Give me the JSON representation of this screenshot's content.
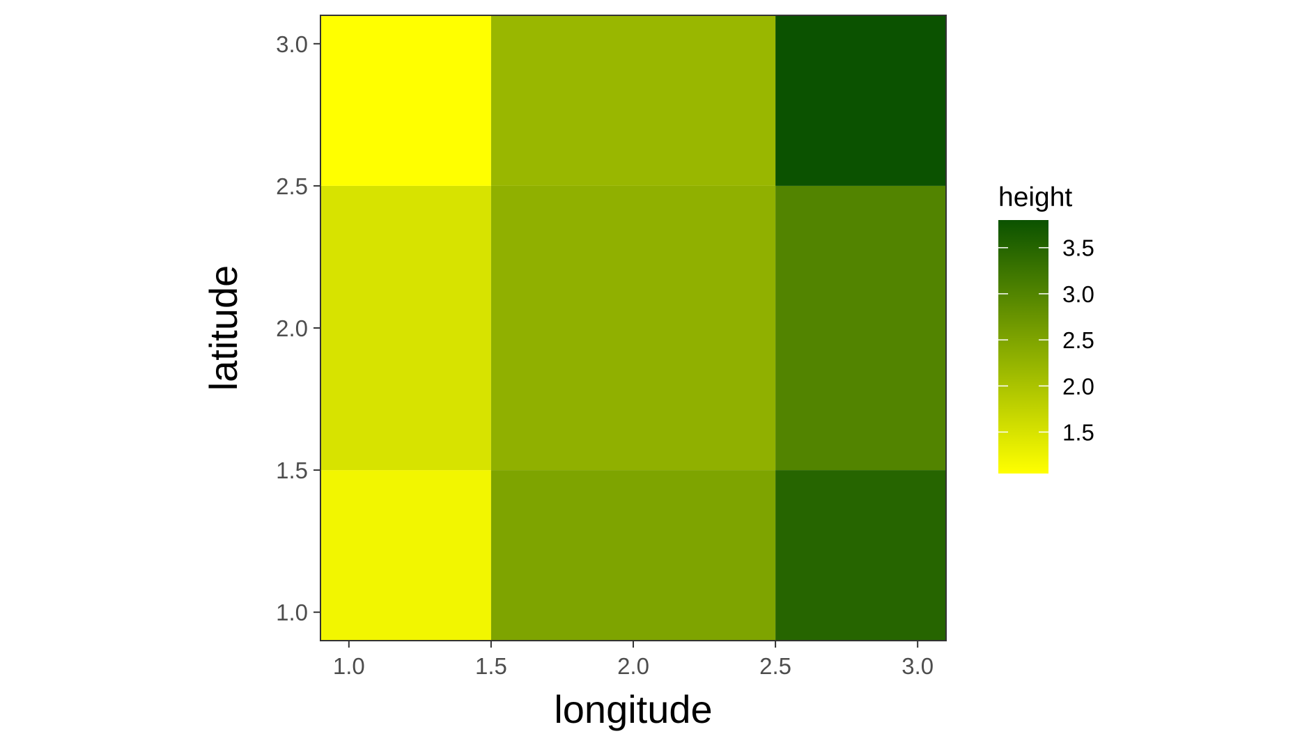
{
  "chart_data": {
    "type": "heatmap",
    "title": "",
    "xlabel": "longitude",
    "ylabel": "latitude",
    "xlim": [
      0.9,
      3.1
    ],
    "ylim": [
      0.9,
      3.1
    ],
    "x_ticks": [
      "1.0",
      "1.5",
      "2.0",
      "2.5",
      "3.0"
    ],
    "y_ticks": [
      "1.0",
      "1.5",
      "2.0",
      "2.5",
      "3.0"
    ],
    "grid": false,
    "legend": {
      "title": "height",
      "placement": "right",
      "range": [
        1.05,
        3.8
      ],
      "ticks": [
        "1.5",
        "2.0",
        "2.5",
        "3.0",
        "3.5"
      ],
      "low_color": "#FFFF00",
      "high_color": "#0B5200"
    },
    "x_bins": [
      [
        0.9,
        1.5
      ],
      [
        1.5,
        2.5
      ],
      [
        2.5,
        3.1
      ]
    ],
    "y_bins": [
      [
        0.9,
        1.5
      ],
      [
        1.5,
        2.5
      ],
      [
        2.5,
        3.1
      ]
    ],
    "cells": [
      {
        "x": 1,
        "y": 1,
        "value": 1.2
      },
      {
        "x": 2,
        "y": 1,
        "value": 2.5
      },
      {
        "x": 3,
        "y": 1,
        "value": 3.5
      },
      {
        "x": 1,
        "y": 2,
        "value": 1.5
      },
      {
        "x": 2,
        "y": 2,
        "value": 2.3
      },
      {
        "x": 3,
        "y": 2,
        "value": 3.0
      },
      {
        "x": 1,
        "y": 3,
        "value": 1.05
      },
      {
        "x": 2,
        "y": 3,
        "value": 2.2
      },
      {
        "x": 3,
        "y": 3,
        "value": 3.8
      }
    ]
  }
}
